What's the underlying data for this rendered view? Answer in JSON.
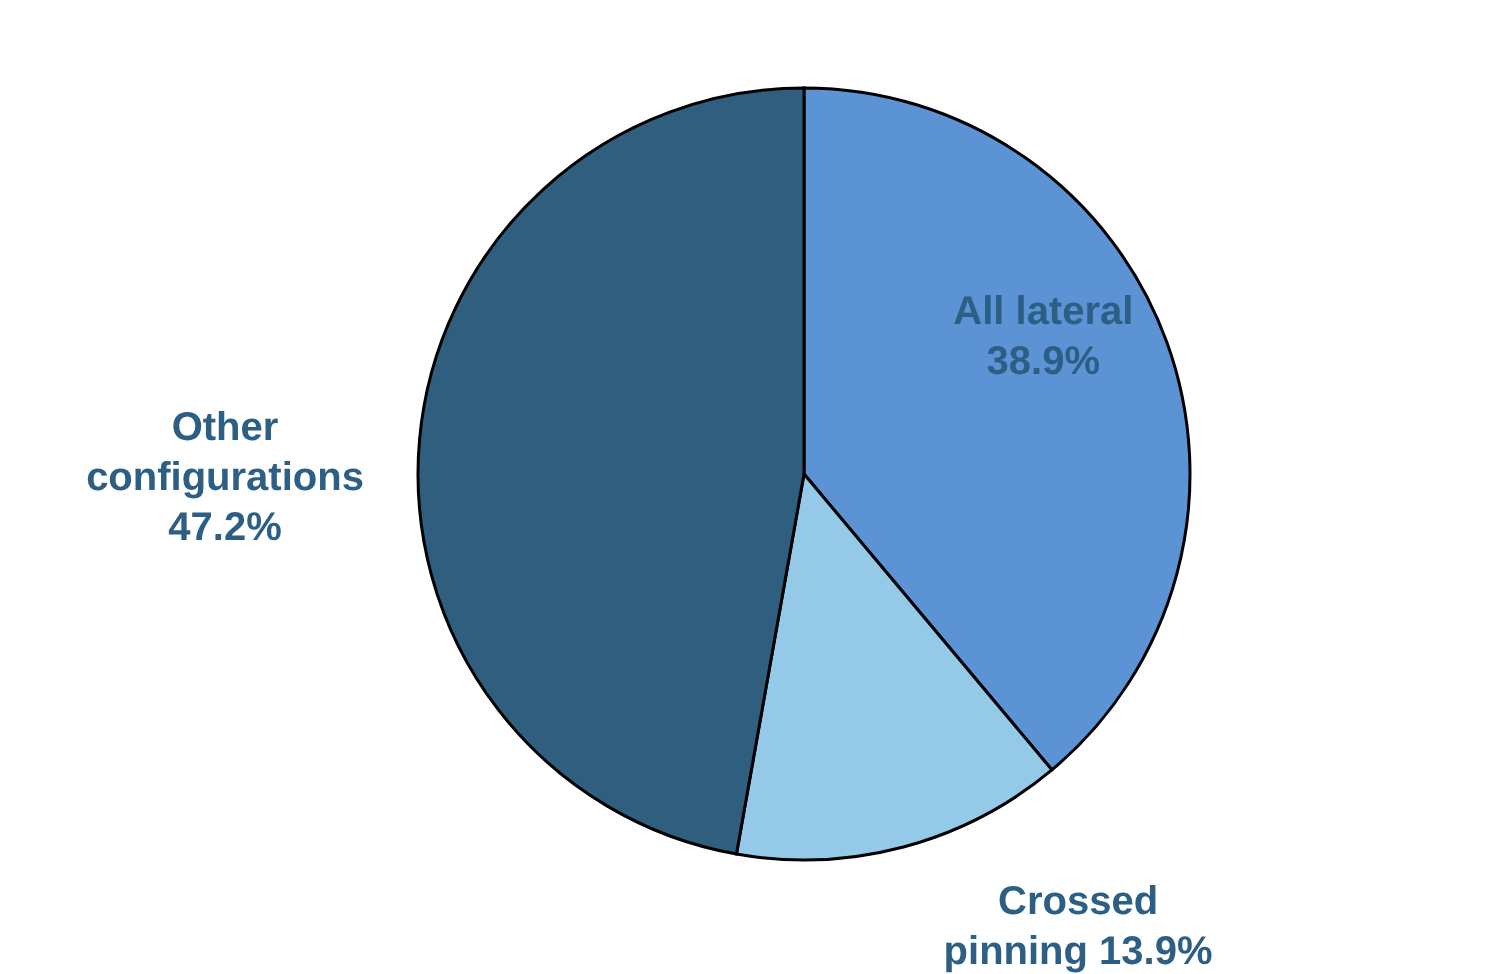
{
  "chart_data": {
    "type": "pie",
    "categories": [
      "All lateral",
      "Crossed pinning",
      "Other configurations"
    ],
    "values": [
      38.9,
      13.9,
      47.2
    ],
    "colors": [
      "#5b93d5",
      "#94c9e8",
      "#305e7f"
    ],
    "value_labels": [
      "38.9%",
      "13.9%",
      "47.2%"
    ]
  }
}
